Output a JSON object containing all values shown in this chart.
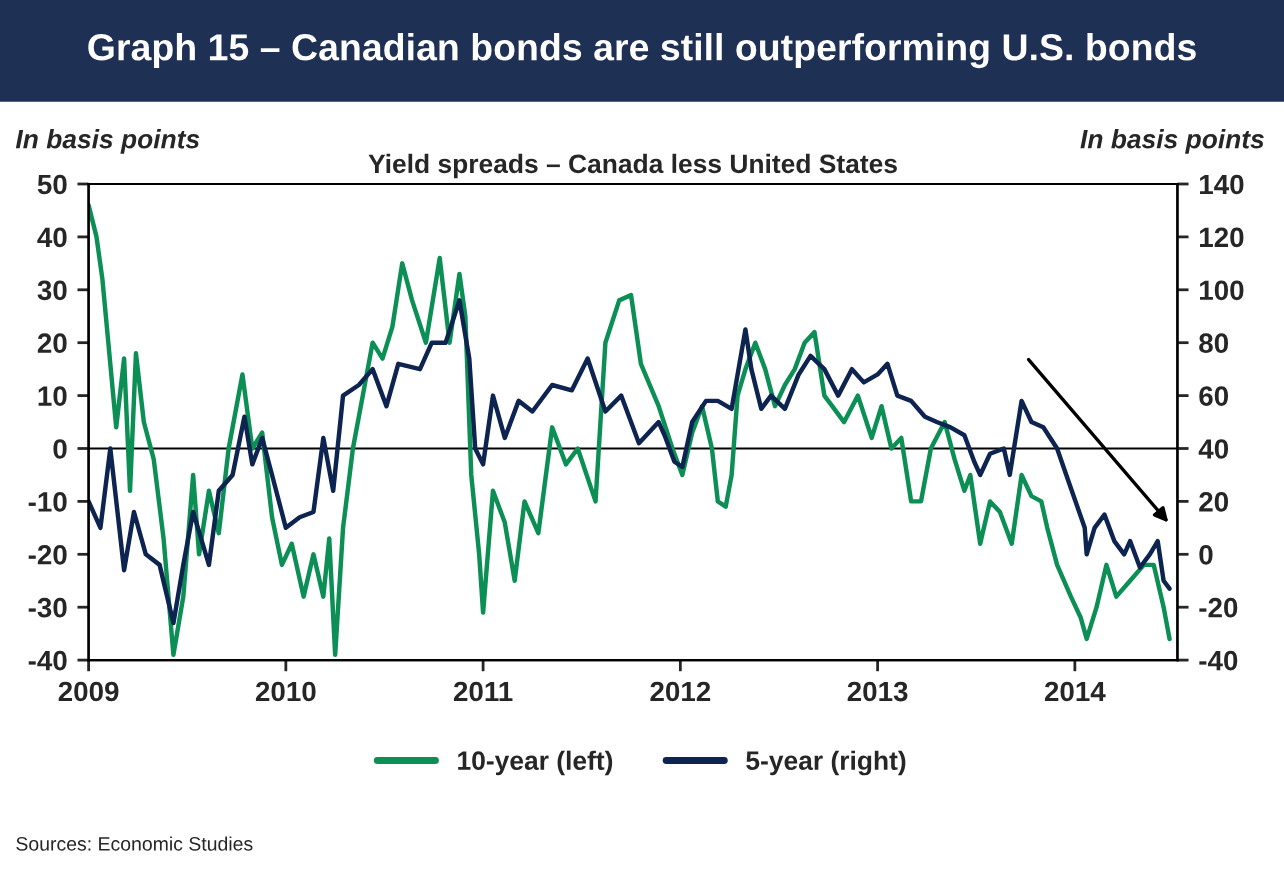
{
  "chart_data": {
    "type": "line",
    "title": "Graph 15 – Canadian bonds are still outperforming U.S. bonds",
    "subtitle": "Yield spreads – Canada less United States",
    "ylabel": "In basis points",
    "y2label": "In basis points",
    "annotations": [
      "Sources: Economic Studies"
    ],
    "xlim": [
      2009,
      2014.52
    ],
    "xticks": [
      2009,
      2010,
      2011,
      2012,
      2013,
      2014
    ],
    "ylim": [
      -40,
      50
    ],
    "yticks": [
      -40,
      -30,
      -20,
      -10,
      0,
      10,
      20,
      30,
      40,
      50
    ],
    "y2lim": [
      -40,
      140
    ],
    "y2ticks": [
      -40,
      -20,
      0,
      20,
      40,
      60,
      80,
      100,
      120,
      140
    ],
    "ref_lines": [
      {
        "axis": "y",
        "value": 0,
        "color": "#000000"
      }
    ],
    "grid": false,
    "legend": "bottom",
    "line_style": "solid",
    "marker": "none",
    "series": [
      {
        "name": "10-year (left)",
        "color": "#0b8f55",
        "x": [
          2009.0,
          2009.04,
          2009.07,
          2009.11,
          2009.14,
          2009.18,
          2009.21,
          2009.24,
          2009.28,
          2009.33,
          2009.38,
          2009.43,
          2009.48,
          2009.53,
          2009.56,
          2009.61,
          2009.66,
          2009.71,
          2009.78,
          2009.83,
          2009.88,
          2009.93,
          2009.98,
          2010.03,
          2010.09,
          2010.14,
          2010.19,
          2010.22,
          2010.25,
          2010.29,
          2010.34,
          2010.39,
          2010.44,
          2010.49,
          2010.54,
          2010.59,
          2010.64,
          2010.71,
          2010.78,
          2010.83,
          2010.88,
          2010.91,
          2010.94,
          2010.98,
          2011.0,
          2011.05,
          2011.11,
          2011.16,
          2011.21,
          2011.28,
          2011.35,
          2011.42,
          2011.48,
          2011.57,
          2011.62,
          2011.69,
          2011.75,
          2011.8,
          2011.89,
          2011.96,
          2012.01,
          2012.06,
          2012.11,
          2012.16,
          2012.19,
          2012.23,
          2012.26,
          2012.29,
          2012.33,
          2012.38,
          2012.43,
          2012.48,
          2012.53,
          2012.58,
          2012.63,
          2012.68,
          2012.73,
          2012.77,
          2012.83,
          2012.9,
          2012.97,
          2013.02,
          2013.07,
          2013.12,
          2013.17,
          2013.22,
          2013.27,
          2013.34,
          2013.39,
          2013.44,
          2013.47,
          2013.52,
          2013.57,
          2013.62,
          2013.68,
          2013.73,
          2013.78,
          2013.83,
          2013.86,
          2013.91,
          2013.98,
          2014.03,
          2014.06,
          2014.11,
          2014.16,
          2014.21,
          2014.28,
          2014.35,
          2014.4,
          2014.45,
          2014.48
        ],
        "values": [
          46,
          40,
          32,
          16,
          4,
          17,
          -8,
          18,
          5,
          -2,
          -17,
          -39,
          -28,
          -5,
          -20,
          -8,
          -16,
          0,
          14,
          0,
          3,
          -13,
          -22,
          -18,
          -28,
          -20,
          -28,
          -17,
          -39,
          -15,
          0,
          10,
          20,
          17,
          23,
          35,
          28,
          20,
          36,
          20,
          33,
          25,
          -5,
          -20,
          -31,
          -8,
          -14,
          -25,
          -10,
          -16,
          4,
          -3,
          0,
          -10,
          20,
          28,
          29,
          16,
          8,
          0,
          -5,
          3,
          8,
          0,
          -10,
          -11,
          -5,
          10,
          15,
          20,
          15,
          8,
          12,
          15,
          20,
          22,
          10,
          8,
          5,
          10,
          2,
          8,
          0,
          2,
          -10,
          -10,
          0,
          5,
          -2,
          -8,
          -5,
          -18,
          -10,
          -12,
          -18,
          -5,
          -9,
          -10,
          -15,
          -22,
          -28,
          -32,
          -36,
          -30,
          -22,
          -28,
          -25,
          -22,
          -22,
          -30,
          -36
        ]
      },
      {
        "name": "5-year (right)",
        "color": "#0d2350",
        "axis": "y2",
        "x": [
          2009.0,
          2009.06,
          2009.11,
          2009.18,
          2009.23,
          2009.29,
          2009.36,
          2009.43,
          2009.48,
          2009.53,
          2009.61,
          2009.66,
          2009.73,
          2009.79,
          2009.83,
          2009.88,
          2009.93,
          2010.0,
          2010.07,
          2010.14,
          2010.19,
          2010.24,
          2010.29,
          2010.37,
          2010.44,
          2010.51,
          2010.57,
          2010.68,
          2010.74,
          2010.81,
          2010.88,
          2010.93,
          2010.96,
          2011.0,
          2011.05,
          2011.11,
          2011.18,
          2011.25,
          2011.35,
          2011.45,
          2011.53,
          2011.62,
          2011.7,
          2011.79,
          2011.89,
          2011.92,
          2011.97,
          2012.01,
          2012.06,
          2012.13,
          2012.19,
          2012.26,
          2012.33,
          2012.36,
          2012.41,
          2012.46,
          2012.53,
          2012.6,
          2012.66,
          2012.73,
          2012.8,
          2012.87,
          2012.93,
          2013.0,
          2013.05,
          2013.1,
          2013.17,
          2013.24,
          2013.3,
          2013.37,
          2013.44,
          2013.49,
          2013.52,
          2013.57,
          2013.64,
          2013.67,
          2013.73,
          2013.78,
          2013.84,
          2013.91,
          2013.98,
          2014.05,
          2014.06,
          2014.1,
          2014.15,
          2014.2,
          2014.25,
          2014.28,
          2014.33,
          2014.38,
          2014.42,
          2014.45,
          2014.48
        ],
        "values": [
          20,
          10,
          40,
          -6,
          16,
          0,
          -4,
          -26,
          -4,
          16,
          -4,
          24,
          30,
          52,
          34,
          44,
          30,
          10,
          14,
          16,
          44,
          24,
          60,
          64,
          70,
          56,
          72,
          70,
          80,
          80,
          96,
          74,
          40,
          34,
          60,
          44,
          58,
          54,
          64,
          62,
          74,
          54,
          60,
          42,
          50,
          45,
          35,
          33,
          50,
          58,
          58,
          55,
          85,
          70,
          55,
          60,
          55,
          68,
          75,
          70,
          60,
          70,
          65,
          68,
          72,
          60,
          58,
          52,
          50,
          48,
          45,
          35,
          30,
          38,
          40,
          30,
          58,
          50,
          48,
          40,
          25,
          10,
          0,
          10,
          15,
          5,
          0,
          5,
          -5,
          0,
          5,
          -10,
          -13
        ]
      }
    ]
  }
}
